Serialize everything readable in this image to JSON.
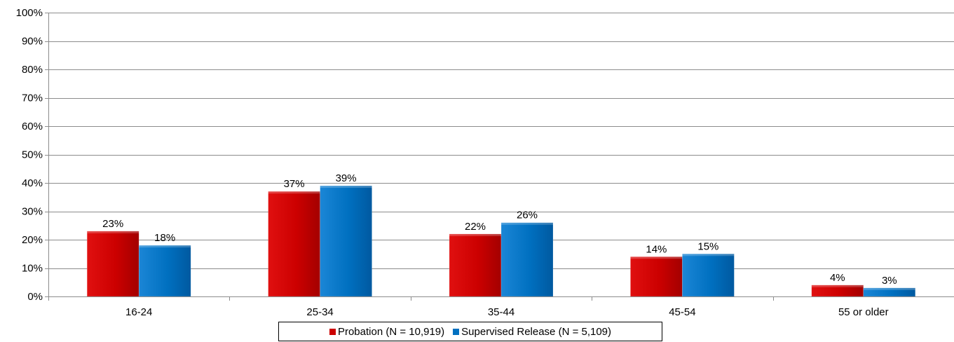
{
  "chart_data": {
    "type": "bar",
    "title": "",
    "xlabel": "",
    "ylabel": "",
    "categories": [
      "16-24",
      "25-34",
      "35-44",
      "45-54",
      "55 or older"
    ],
    "series": [
      {
        "name": "Probation (N = 10,919)",
        "color": "#cc0000",
        "values": [
          23,
          37,
          22,
          14,
          4
        ],
        "labels": [
          "23%",
          "37%",
          "22%",
          "14%",
          "4%"
        ]
      },
      {
        "name": "Supervised Release (N = 5,109)",
        "color": "#0070c0",
        "values": [
          18,
          39,
          26,
          15,
          3
        ],
        "labels": [
          "18%",
          "39%",
          "26%",
          "15%",
          "3%"
        ]
      }
    ],
    "ylim": [
      0,
      100
    ],
    "yticks": [
      0,
      10,
      20,
      30,
      40,
      50,
      60,
      70,
      80,
      90,
      100
    ],
    "ytick_labels": [
      "0%",
      "10%",
      "20%",
      "30%",
      "40%",
      "50%",
      "60%",
      "70%",
      "80%",
      "90%",
      "100%"
    ],
    "grid": true,
    "legend_position": "bottom"
  }
}
